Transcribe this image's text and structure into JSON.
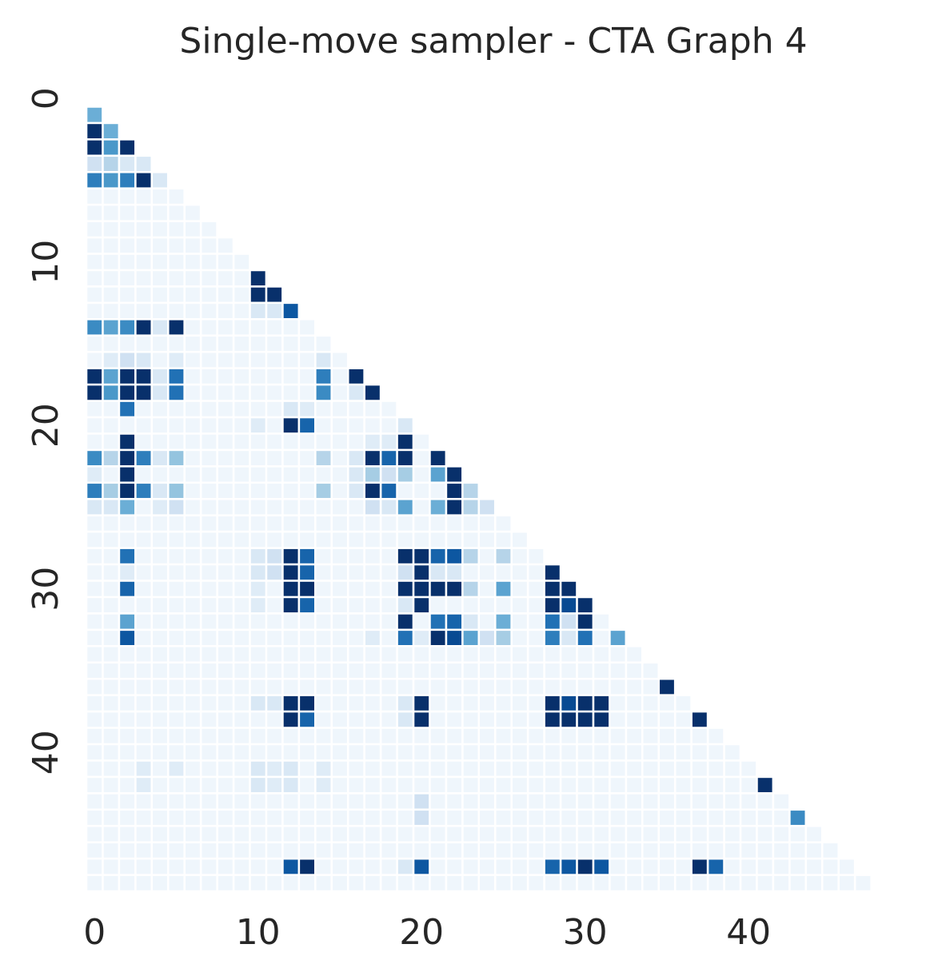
{
  "chart_data": {
    "type": "heatmap",
    "title": "Single-move sampler - CTA Graph 4",
    "xlabel": "",
    "ylabel": "",
    "size": 49,
    "mask": "lower-triangle-only",
    "colormap": "Blues",
    "value_range": [
      0,
      1
    ],
    "colorbar": false,
    "grid": false,
    "x_tick_labels": [
      "0",
      "10",
      "20",
      "30",
      "40"
    ],
    "x_tick_values": [
      0,
      10,
      20,
      30,
      40
    ],
    "y_tick_labels": [
      "0",
      "10",
      "20",
      "30",
      "40"
    ],
    "y_tick_values": [
      0,
      10,
      20,
      30,
      40
    ],
    "background_level": 0.04,
    "cells": [
      [
        1,
        0,
        0.5
      ],
      [
        2,
        0,
        1.0
      ],
      [
        2,
        1,
        0.5
      ],
      [
        3,
        0,
        1.0
      ],
      [
        3,
        1,
        0.6
      ],
      [
        3,
        2,
        1.0
      ],
      [
        4,
        0,
        0.2
      ],
      [
        4,
        1,
        0.3
      ],
      [
        4,
        2,
        0.15
      ],
      [
        4,
        3,
        0.15
      ],
      [
        5,
        0,
        0.7
      ],
      [
        5,
        1,
        0.6
      ],
      [
        5,
        2,
        0.7
      ],
      [
        5,
        3,
        1.0
      ],
      [
        5,
        4,
        0.15
      ],
      [
        11,
        10,
        1.0
      ],
      [
        12,
        10,
        1.0
      ],
      [
        12,
        11,
        1.0
      ],
      [
        13,
        10,
        0.15
      ],
      [
        13,
        11,
        0.15
      ],
      [
        13,
        12,
        0.85
      ],
      [
        14,
        0,
        0.65
      ],
      [
        14,
        1,
        0.55
      ],
      [
        14,
        2,
        0.65
      ],
      [
        14,
        3,
        1.0
      ],
      [
        14,
        4,
        0.15
      ],
      [
        14,
        5,
        1.0
      ],
      [
        16,
        1,
        0.12
      ],
      [
        16,
        2,
        0.2
      ],
      [
        16,
        3,
        0.15
      ],
      [
        16,
        5,
        0.12
      ],
      [
        16,
        14,
        0.15
      ],
      [
        17,
        0,
        1.0
      ],
      [
        17,
        1,
        0.55
      ],
      [
        17,
        2,
        1.0
      ],
      [
        17,
        3,
        1.0
      ],
      [
        17,
        4,
        0.15
      ],
      [
        17,
        5,
        0.75
      ],
      [
        17,
        14,
        0.7
      ],
      [
        17,
        16,
        1.0
      ],
      [
        18,
        0,
        1.0
      ],
      [
        18,
        1,
        0.6
      ],
      [
        18,
        2,
        1.0
      ],
      [
        18,
        3,
        1.0
      ],
      [
        18,
        4,
        0.15
      ],
      [
        18,
        5,
        0.75
      ],
      [
        18,
        14,
        0.65
      ],
      [
        18,
        16,
        0.15
      ],
      [
        18,
        17,
        1.0
      ],
      [
        19,
        2,
        0.75
      ],
      [
        19,
        12,
        0.15
      ],
      [
        19,
        13,
        0.12
      ],
      [
        20,
        10,
        0.12
      ],
      [
        20,
        12,
        1.0
      ],
      [
        20,
        13,
        0.8
      ],
      [
        20,
        19,
        0.15
      ],
      [
        21,
        2,
        1.0
      ],
      [
        21,
        17,
        0.12
      ],
      [
        21,
        18,
        0.12
      ],
      [
        21,
        19,
        1.0
      ],
      [
        22,
        0,
        0.65
      ],
      [
        22,
        1,
        0.3
      ],
      [
        22,
        2,
        1.0
      ],
      [
        22,
        3,
        0.7
      ],
      [
        22,
        4,
        0.15
      ],
      [
        22,
        5,
        0.4
      ],
      [
        22,
        14,
        0.3
      ],
      [
        22,
        16,
        0.15
      ],
      [
        22,
        17,
        1.0
      ],
      [
        22,
        18,
        0.8
      ],
      [
        22,
        19,
        1.0
      ],
      [
        22,
        21,
        1.0
      ],
      [
        23,
        0,
        0.12
      ],
      [
        23,
        2,
        1.0
      ],
      [
        23,
        16,
        0.15
      ],
      [
        23,
        17,
        0.35
      ],
      [
        23,
        18,
        0.2
      ],
      [
        23,
        19,
        0.35
      ],
      [
        23,
        21,
        0.55
      ],
      [
        23,
        22,
        1.0
      ],
      [
        24,
        0,
        0.7
      ],
      [
        24,
        1,
        0.35
      ],
      [
        24,
        2,
        1.0
      ],
      [
        24,
        3,
        0.7
      ],
      [
        24,
        4,
        0.15
      ],
      [
        24,
        5,
        0.4
      ],
      [
        24,
        14,
        0.35
      ],
      [
        24,
        16,
        0.15
      ],
      [
        24,
        17,
        1.0
      ],
      [
        24,
        18,
        0.8
      ],
      [
        24,
        22,
        1.0
      ],
      [
        24,
        23,
        0.3
      ],
      [
        25,
        0,
        0.15
      ],
      [
        25,
        1,
        0.15
      ],
      [
        25,
        2,
        0.5
      ],
      [
        25,
        4,
        0.12
      ],
      [
        25,
        5,
        0.2
      ],
      [
        25,
        17,
        0.2
      ],
      [
        25,
        18,
        0.15
      ],
      [
        25,
        19,
        0.55
      ],
      [
        25,
        21,
        0.5
      ],
      [
        25,
        22,
        1.0
      ],
      [
        25,
        23,
        0.3
      ],
      [
        25,
        24,
        0.2
      ],
      [
        28,
        2,
        0.75
      ],
      [
        28,
        10,
        0.15
      ],
      [
        28,
        11,
        0.2
      ],
      [
        28,
        12,
        1.0
      ],
      [
        28,
        13,
        0.8
      ],
      [
        28,
        19,
        1.0
      ],
      [
        28,
        20,
        1.0
      ],
      [
        28,
        21,
        0.8
      ],
      [
        28,
        22,
        0.85
      ],
      [
        28,
        23,
        0.3
      ],
      [
        28,
        25,
        0.3
      ],
      [
        29,
        2,
        0.12
      ],
      [
        29,
        10,
        0.15
      ],
      [
        29,
        11,
        0.2
      ],
      [
        29,
        12,
        1.0
      ],
      [
        29,
        13,
        0.8
      ],
      [
        29,
        19,
        0.2
      ],
      [
        29,
        20,
        1.0
      ],
      [
        29,
        21,
        0.15
      ],
      [
        29,
        22,
        0.15
      ],
      [
        29,
        28,
        1.0
      ],
      [
        30,
        2,
        0.8
      ],
      [
        30,
        10,
        0.12
      ],
      [
        30,
        12,
        1.0
      ],
      [
        30,
        13,
        1.0
      ],
      [
        30,
        19,
        1.0
      ],
      [
        30,
        20,
        1.0
      ],
      [
        30,
        21,
        1.0
      ],
      [
        30,
        22,
        1.0
      ],
      [
        30,
        23,
        0.3
      ],
      [
        30,
        25,
        0.55
      ],
      [
        30,
        28,
        1.0
      ],
      [
        30,
        29,
        1.0
      ],
      [
        31,
        10,
        0.12
      ],
      [
        31,
        12,
        1.0
      ],
      [
        31,
        13,
        0.8
      ],
      [
        31,
        19,
        0.15
      ],
      [
        31,
        20,
        1.0
      ],
      [
        31,
        28,
        1.0
      ],
      [
        31,
        29,
        0.9
      ],
      [
        31,
        30,
        1.0
      ],
      [
        32,
        2,
        0.55
      ],
      [
        32,
        19,
        1.0
      ],
      [
        32,
        21,
        0.75
      ],
      [
        32,
        22,
        0.8
      ],
      [
        32,
        23,
        0.15
      ],
      [
        32,
        25,
        0.5
      ],
      [
        32,
        28,
        0.75
      ],
      [
        32,
        29,
        0.2
      ],
      [
        32,
        30,
        1.0
      ],
      [
        33,
        2,
        0.85
      ],
      [
        33,
        17,
        0.12
      ],
      [
        33,
        19,
        0.75
      ],
      [
        33,
        20,
        0.12
      ],
      [
        33,
        21,
        1.0
      ],
      [
        33,
        22,
        0.9
      ],
      [
        33,
        23,
        0.55
      ],
      [
        33,
        24,
        0.2
      ],
      [
        33,
        25,
        0.35
      ],
      [
        33,
        28,
        0.7
      ],
      [
        33,
        29,
        0.15
      ],
      [
        33,
        30,
        0.75
      ],
      [
        33,
        32,
        0.55
      ],
      [
        36,
        35,
        1.0
      ],
      [
        37,
        10,
        0.15
      ],
      [
        37,
        11,
        0.15
      ],
      [
        37,
        12,
        1.0
      ],
      [
        37,
        13,
        1.0
      ],
      [
        37,
        19,
        0.15
      ],
      [
        37,
        20,
        1.0
      ],
      [
        37,
        28,
        1.0
      ],
      [
        37,
        29,
        0.9
      ],
      [
        37,
        30,
        1.0
      ],
      [
        37,
        31,
        1.0
      ],
      [
        38,
        12,
        1.0
      ],
      [
        38,
        13,
        0.8
      ],
      [
        38,
        19,
        0.15
      ],
      [
        38,
        20,
        1.0
      ],
      [
        38,
        28,
        1.0
      ],
      [
        38,
        29,
        1.0
      ],
      [
        38,
        30,
        1.0
      ],
      [
        38,
        31,
        1.0
      ],
      [
        38,
        37,
        1.0
      ],
      [
        41,
        3,
        0.12
      ],
      [
        41,
        5,
        0.12
      ],
      [
        41,
        10,
        0.15
      ],
      [
        41,
        11,
        0.12
      ],
      [
        41,
        12,
        0.15
      ],
      [
        41,
        14,
        0.12
      ],
      [
        42,
        3,
        0.12
      ],
      [
        42,
        10,
        0.15
      ],
      [
        42,
        11,
        0.12
      ],
      [
        42,
        12,
        0.15
      ],
      [
        42,
        14,
        0.12
      ],
      [
        42,
        41,
        1.0
      ],
      [
        43,
        20,
        0.2
      ],
      [
        44,
        20,
        0.2
      ],
      [
        44,
        43,
        0.65
      ],
      [
        47,
        12,
        0.85
      ],
      [
        47,
        13,
        1.0
      ],
      [
        47,
        19,
        0.15
      ],
      [
        47,
        20,
        0.85
      ],
      [
        47,
        28,
        0.8
      ],
      [
        47,
        29,
        0.85
      ],
      [
        47,
        30,
        1.0
      ],
      [
        47,
        31,
        0.85
      ],
      [
        47,
        37,
        1.0
      ],
      [
        47,
        38,
        0.8
      ]
    ]
  }
}
